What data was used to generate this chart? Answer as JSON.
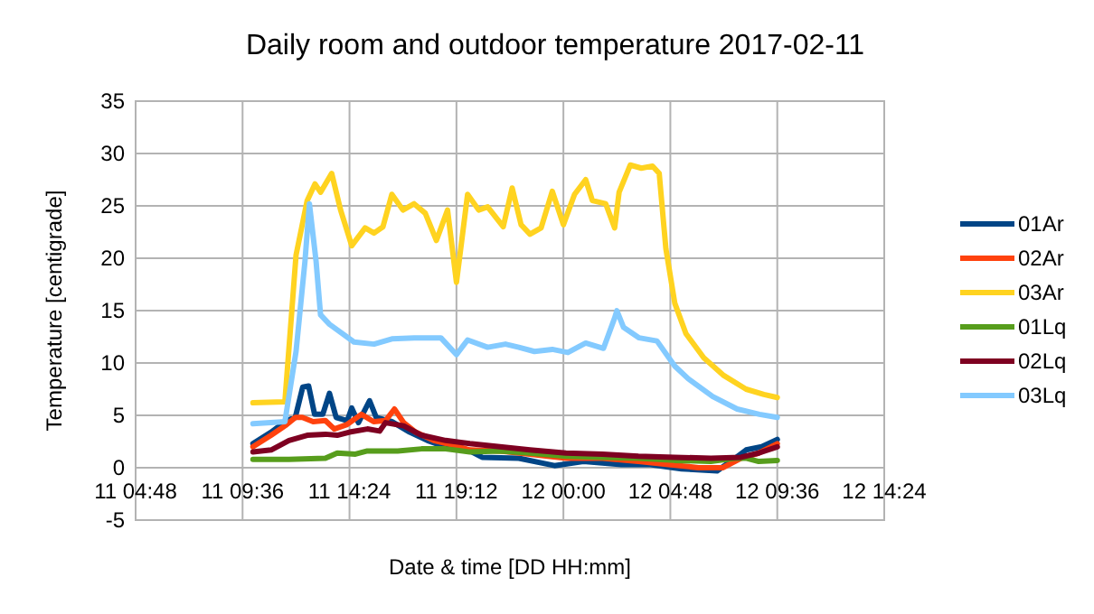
{
  "chart_data": {
    "type": "line",
    "title": "Daily room and outdoor temperature 2017-02-11",
    "xlabel": "Date & time [DD HH:mm]",
    "ylabel": "Temperature [centigrade]",
    "xlim": [
      "2017-02-11T04:48",
      "2017-02-12T14:24"
    ],
    "xticks": [
      {
        "value": "2017-02-11T04:48",
        "label": "11 04:48"
      },
      {
        "value": "2017-02-11T09:36",
        "label": "11 09:36"
      },
      {
        "value": "2017-02-11T14:24",
        "label": "11 14:24"
      },
      {
        "value": "2017-02-11T19:12",
        "label": "11 19:12"
      },
      {
        "value": "2017-02-12T00:00",
        "label": "12 00:00"
      },
      {
        "value": "2017-02-12T04:48",
        "label": "12 04:48"
      },
      {
        "value": "2017-02-12T09:36",
        "label": "12 09:36"
      },
      {
        "value": "2017-02-12T14:24",
        "label": "12 14:24"
      }
    ],
    "ylim": [
      -5,
      35
    ],
    "yticks": [
      -5,
      0,
      5,
      10,
      15,
      20,
      25,
      30,
      35
    ],
    "grid": true,
    "legend": "right",
    "marker": "none",
    "line_style": "solid",
    "series": [
      {
        "name": "01Ar",
        "color": "#004586",
        "x": [
          "2017-02-11T10:04",
          "2017-02-11T10:53",
          "2017-02-11T11:34",
          "2017-02-11T11:58",
          "2017-02-11T12:18",
          "2017-02-11T12:34",
          "2017-02-11T12:50",
          "2017-02-11T13:12",
          "2017-02-11T13:30",
          "2017-02-11T13:48",
          "2017-02-11T14:18",
          "2017-02-11T14:30",
          "2017-02-11T14:48",
          "2017-02-11T15:18",
          "2017-02-11T15:36",
          "2017-02-11T16:18",
          "2017-02-11T17:06",
          "2017-02-11T17:54",
          "2017-02-11T18:42",
          "2017-02-11T19:48",
          "2017-02-11T20:21",
          "2017-02-11T22:00",
          "2017-02-11T23:36",
          "2017-02-12T00:54",
          "2017-02-12T02:36",
          "2017-02-12T03:54",
          "2017-02-12T05:18",
          "2017-02-12T06:54",
          "2017-02-12T07:42",
          "2017-02-12T08:12",
          "2017-02-12T08:54",
          "2017-02-12T09:36"
        ],
        "values": [
          2.3,
          3.4,
          4.5,
          4.8,
          7.7,
          7.8,
          5.1,
          5.1,
          7.1,
          4.8,
          4.5,
          5.7,
          4.3,
          6.4,
          4.8,
          4.4,
          3.4,
          2.6,
          2.0,
          1.6,
          1.0,
          0.9,
          0.2,
          0.6,
          0.3,
          0.3,
          -0.1,
          -0.3,
          0.9,
          1.7,
          2.0,
          2.7
        ]
      },
      {
        "name": "02Ar",
        "color": "#ff420e",
        "x": [
          "2017-02-11T10:04",
          "2017-02-11T10:53",
          "2017-02-11T11:34",
          "2017-02-11T11:58",
          "2017-02-11T12:17",
          "2017-02-11T12:46",
          "2017-02-11T13:19",
          "2017-02-11T13:43",
          "2017-02-11T14:16",
          "2017-02-11T14:56",
          "2017-02-11T15:29",
          "2017-02-11T16:01",
          "2017-02-11T16:25",
          "2017-02-11T16:50",
          "2017-02-11T17:22",
          "2017-02-11T18:11",
          "2017-02-11T18:59",
          "2017-02-11T19:48",
          "2017-02-11T21:09",
          "2017-02-11T22:30",
          "2017-02-12T00:07",
          "2017-02-12T01:45",
          "2017-02-12T03:22",
          "2017-02-12T04:43",
          "2017-02-12T06:04",
          "2017-02-12T07:09",
          "2017-02-12T07:58",
          "2017-02-12T08:46",
          "2017-02-12T09:36"
        ],
        "values": [
          2.0,
          3.1,
          4.1,
          4.8,
          4.8,
          4.4,
          4.5,
          3.7,
          4.1,
          5.1,
          4.4,
          4.5,
          5.6,
          4.3,
          3.4,
          2.6,
          2.2,
          1.7,
          1.6,
          1.3,
          0.9,
          0.9,
          0.6,
          0.3,
          0,
          0,
          0.9,
          1.4,
          2.3
        ]
      },
      {
        "name": "03Ar",
        "color": "#ffd320",
        "x": [
          "2017-02-11T10:04",
          "2017-02-11T11:30",
          "2017-02-11T12:00",
          "2017-02-11T12:30",
          "2017-02-11T12:51",
          "2017-02-11T13:06",
          "2017-02-11T13:36",
          "2017-02-11T14:00",
          "2017-02-11T14:30",
          "2017-02-11T15:06",
          "2017-02-11T15:30",
          "2017-02-11T15:54",
          "2017-02-11T16:18",
          "2017-02-11T16:48",
          "2017-02-11T17:18",
          "2017-02-11T17:48",
          "2017-02-11T18:18",
          "2017-02-11T18:48",
          "2017-02-11T19:12",
          "2017-02-11T19:42",
          "2017-02-11T20:12",
          "2017-02-11T20:36",
          "2017-02-11T21:18",
          "2017-02-11T21:42",
          "2017-02-11T22:06",
          "2017-02-11T22:30",
          "2017-02-11T23:00",
          "2017-02-11T23:30",
          "2017-02-12T00:00",
          "2017-02-12T00:30",
          "2017-02-12T01:00",
          "2017-02-12T01:18",
          "2017-02-12T01:54",
          "2017-02-12T02:18",
          "2017-02-12T02:30",
          "2017-02-12T03:00",
          "2017-02-12T03:30",
          "2017-02-12T04:00",
          "2017-02-12T04:18",
          "2017-02-12T04:36",
          "2017-02-12T05:00",
          "2017-02-12T05:30",
          "2017-02-12T06:18",
          "2017-02-12T07:12",
          "2017-02-12T08:12",
          "2017-02-12T09:00",
          "2017-02-12T09:36"
        ],
        "values": [
          6.2,
          6.3,
          20.3,
          25.5,
          27.1,
          26.3,
          28.1,
          24.6,
          21.2,
          22.9,
          22.4,
          23.0,
          26.1,
          24.6,
          25.2,
          24.3,
          21.7,
          24.6,
          17.7,
          26.1,
          24.6,
          24.9,
          23.0,
          26.7,
          23.2,
          22.3,
          22.9,
          26.4,
          23.2,
          26.1,
          27.5,
          25.5,
          25.2,
          22.9,
          26.3,
          28.9,
          28.6,
          28.8,
          28.1,
          20.9,
          15.7,
          12.8,
          10.5,
          8.8,
          7.5,
          7.0,
          6.7
        ]
      },
      {
        "name": "01Lq",
        "color": "#579d1c",
        "x": [
          "2017-02-11T10:04",
          "2017-02-11T11:41",
          "2017-02-11T13:19",
          "2017-02-11T13:51",
          "2017-02-11T14:40",
          "2017-02-11T15:12",
          "2017-02-11T16:34",
          "2017-02-11T17:38",
          "2017-02-11T18:43",
          "2017-02-11T19:48",
          "2017-02-11T21:09",
          "2017-02-11T22:30",
          "2017-02-12T00:07",
          "2017-02-12T01:45",
          "2017-02-12T03:22",
          "2017-02-12T04:59",
          "2017-02-12T06:37",
          "2017-02-12T07:41",
          "2017-02-12T08:14",
          "2017-02-12T08:46",
          "2017-02-12T09:36"
        ],
        "values": [
          0.8,
          0.8,
          0.9,
          1.4,
          1.3,
          1.6,
          1.6,
          1.8,
          1.8,
          1.5,
          1.6,
          1.4,
          1.1,
          1.0,
          0.9,
          0.7,
          0.6,
          0.9,
          0.9,
          0.6,
          0.7
        ]
      },
      {
        "name": "02Lq",
        "color": "#7e0021",
        "x": [
          "2017-02-11T10:04",
          "2017-02-11T10:53",
          "2017-02-11T11:41",
          "2017-02-11T12:30",
          "2017-02-11T13:19",
          "2017-02-11T13:51",
          "2017-02-11T14:24",
          "2017-02-11T15:12",
          "2017-02-11T15:45",
          "2017-02-11T16:01",
          "2017-02-11T16:50",
          "2017-02-11T17:38",
          "2017-02-11T18:43",
          "2017-02-11T19:48",
          "2017-02-11T21:09",
          "2017-02-11T22:30",
          "2017-02-12T00:07",
          "2017-02-12T01:45",
          "2017-02-12T03:22",
          "2017-02-12T04:59",
          "2017-02-12T06:37",
          "2017-02-12T07:58",
          "2017-02-12T08:46",
          "2017-02-12T09:36"
        ],
        "values": [
          1.5,
          1.7,
          2.6,
          3.1,
          3.2,
          3.1,
          3.4,
          3.7,
          3.5,
          4.3,
          4.0,
          3.1,
          2.6,
          2.3,
          2.0,
          1.7,
          1.4,
          1.3,
          1.1,
          1.0,
          0.9,
          1.0,
          1.4,
          2.0
        ]
      },
      {
        "name": "03Lq",
        "color": "#83caff",
        "x": [
          "2017-02-11T10:04",
          "2017-02-11T11:30",
          "2017-02-11T12:00",
          "2017-02-11T12:24",
          "2017-02-11T12:36",
          "2017-02-11T12:54",
          "2017-02-11T13:06",
          "2017-02-11T13:30",
          "2017-02-11T14:36",
          "2017-02-11T15:30",
          "2017-02-11T16:18",
          "2017-02-11T17:18",
          "2017-02-11T18:30",
          "2017-02-11T19:12",
          "2017-02-11T19:42",
          "2017-02-11T20:36",
          "2017-02-11T21:24",
          "2017-02-11T22:00",
          "2017-02-11T22:42",
          "2017-02-11T23:30",
          "2017-02-12T00:12",
          "2017-02-12T01:00",
          "2017-02-12T01:48",
          "2017-02-12T02:18",
          "2017-02-12T02:24",
          "2017-02-12T02:42",
          "2017-02-12T03:24",
          "2017-02-12T04:12",
          "2017-02-12T05:00",
          "2017-02-12T05:36",
          "2017-02-12T06:42",
          "2017-02-12T07:48",
          "2017-02-12T08:48",
          "2017-02-12T09:36"
        ],
        "values": [
          4.2,
          4.4,
          11.1,
          19.7,
          25.2,
          19.7,
          14.6,
          13.7,
          12.0,
          11.8,
          12.3,
          12.4,
          12.4,
          10.8,
          12.2,
          11.5,
          11.8,
          11.5,
          11.1,
          11.3,
          11.0,
          11.9,
          11.4,
          14.3,
          15.0,
          13.4,
          12.4,
          12.1,
          9.7,
          8.5,
          6.8,
          5.6,
          5.1,
          4.8
        ]
      }
    ]
  }
}
